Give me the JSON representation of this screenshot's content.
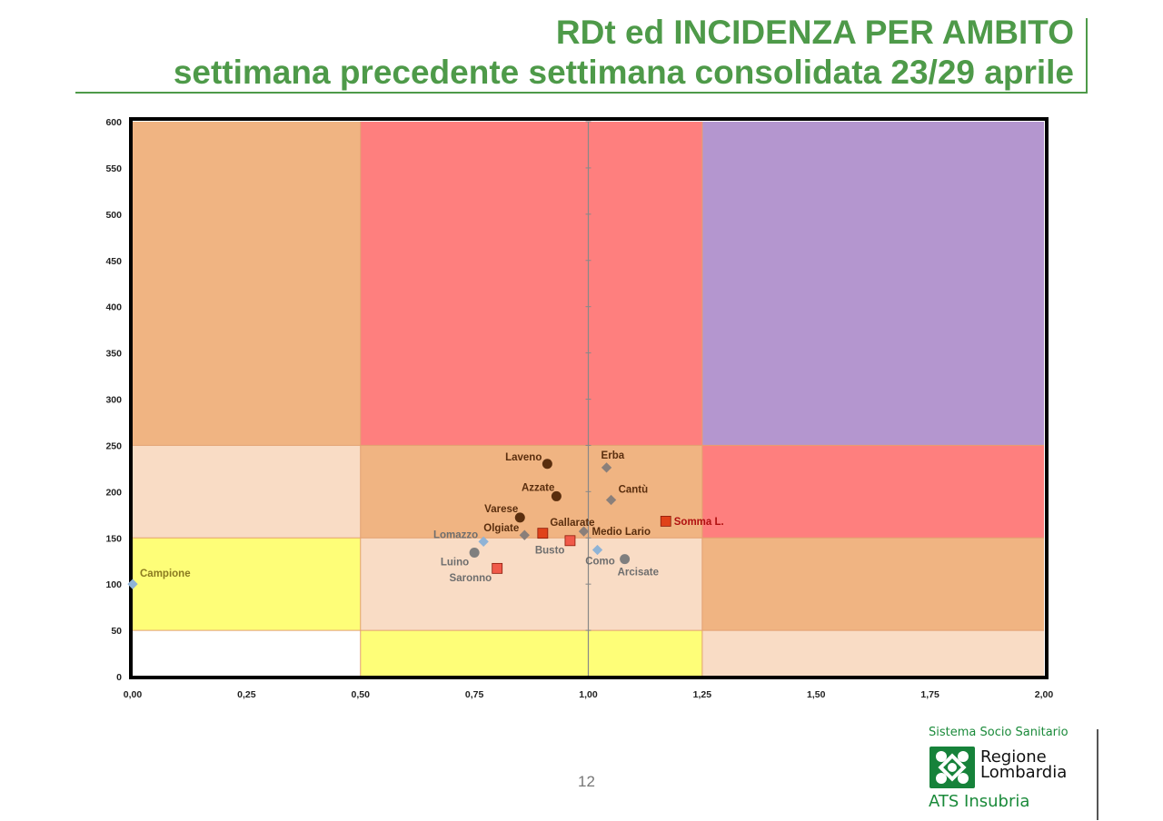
{
  "header": {
    "title_line1": "RDt ed INCIDENZA PER AMBITO",
    "title_line2": "settimana precedente settimana consolidata 23/29 aprile"
  },
  "chart_data": {
    "type": "scatter",
    "title": "",
    "xlabel": "",
    "ylabel": "",
    "xlim": [
      0,
      2
    ],
    "ylim": [
      0,
      600
    ],
    "x_ticks": [
      0,
      0.25,
      0.5,
      0.75,
      1,
      1.25,
      1.5,
      1.75,
      2
    ],
    "x_tick_labels": [
      "0,00",
      "0,25",
      "0,50",
      "0,75",
      "1,00",
      "1,25",
      "1,50",
      "1,75",
      "2,00"
    ],
    "y_ticks": [
      0,
      50,
      100,
      150,
      200,
      250,
      300,
      350,
      400,
      450,
      500,
      550,
      600
    ],
    "y_tick_labels": [
      "0",
      "50",
      "100",
      "150",
      "200",
      "250",
      "300",
      "350",
      "400",
      "450",
      "500",
      "550",
      "600"
    ],
    "grid": false,
    "colors": {
      "orange": "#f0b482",
      "red": "#fe7f7e",
      "purple": "#b496cf",
      "light": "#f9dcc5",
      "yellow": "#fefe78",
      "white": "#ffffff",
      "frame": "#000000"
    },
    "zones": [
      {
        "x": [
          0,
          0.5
        ],
        "y": [
          250,
          600
        ],
        "color": "orange"
      },
      {
        "x": [
          0.5,
          1.25
        ],
        "y": [
          250,
          600
        ],
        "color": "red"
      },
      {
        "x": [
          1.25,
          2
        ],
        "y": [
          250,
          600
        ],
        "color": "purple"
      },
      {
        "x": [
          0,
          0.5
        ],
        "y": [
          150,
          250
        ],
        "color": "light"
      },
      {
        "x": [
          0.5,
          1.25
        ],
        "y": [
          150,
          250
        ],
        "color": "orange"
      },
      {
        "x": [
          1.25,
          2
        ],
        "y": [
          150,
          250
        ],
        "color": "red"
      },
      {
        "x": [
          0,
          0.5
        ],
        "y": [
          50,
          150
        ],
        "color": "yellow"
      },
      {
        "x": [
          0.5,
          1.25
        ],
        "y": [
          50,
          150
        ],
        "color": "light"
      },
      {
        "x": [
          1.25,
          2
        ],
        "y": [
          50,
          150
        ],
        "color": "orange"
      },
      {
        "x": [
          0,
          0.5
        ],
        "y": [
          0,
          50
        ],
        "color": "white"
      },
      {
        "x": [
          0.5,
          1.25
        ],
        "y": [
          0,
          50
        ],
        "color": "yellow"
      },
      {
        "x": [
          1.25,
          2
        ],
        "y": [
          0,
          50
        ],
        "color": "light"
      }
    ],
    "points": [
      {
        "label": "Laveno",
        "x": 0.91,
        "y": 230,
        "marker": "circle",
        "color": "#5a2e0e",
        "text_color": "#5a2e0e",
        "label_pos": "left"
      },
      {
        "label": "Erba",
        "x": 1.04,
        "y": 226,
        "marker": "diamond",
        "color": "#8a7f7a",
        "text_color": "#5a2e0e",
        "label_pos": "above"
      },
      {
        "label": "Azzate",
        "x": 0.93,
        "y": 195,
        "marker": "circle",
        "color": "#5a2e0e",
        "text_color": "#5a2e0e",
        "label_pos": "above-left"
      },
      {
        "label": "Cantù",
        "x": 1.05,
        "y": 191,
        "marker": "diamond",
        "color": "#8a7f7a",
        "text_color": "#5a2e0e",
        "label_pos": "above-right"
      },
      {
        "label": "Varese",
        "x": 0.85,
        "y": 172,
        "marker": "circle",
        "color": "#5a2e0e",
        "text_color": "#5a2e0e",
        "label_pos": "above-left"
      },
      {
        "label": "Somma L.",
        "x": 1.17,
        "y": 168,
        "marker": "square",
        "color": "#e0421a",
        "text_color": "#b01010",
        "label_pos": "right"
      },
      {
        "label": "Gallarate",
        "x": 0.9,
        "y": 155,
        "marker": "square",
        "color": "#e0421a",
        "text_color": "#5a2e0e",
        "label_pos": "above-right"
      },
      {
        "label": "Medio Lario",
        "x": 0.99,
        "y": 157,
        "marker": "diamond",
        "color": "#8a7f7a",
        "text_color": "#5a2e0e",
        "label_pos": "right"
      },
      {
        "label": "Olgiate",
        "x": 0.86,
        "y": 153,
        "marker": "diamond",
        "color": "#8a7f7a",
        "text_color": "#5a2e0e",
        "label_pos": "left"
      },
      {
        "label": "Busto",
        "x": 0.96,
        "y": 147,
        "marker": "square",
        "color": "#f05a4a",
        "text_color": "#6e6e6e",
        "label_pos": "below-left"
      },
      {
        "label": "Lomazzo",
        "x": 0.77,
        "y": 146,
        "marker": "diamond",
        "color": "#8fb3d6",
        "text_color": "#6e6e6e",
        "label_pos": "left"
      },
      {
        "label": "Como",
        "x": 1.02,
        "y": 137,
        "marker": "diamond",
        "color": "#8fb3d6",
        "text_color": "#6e6e6e",
        "label_pos": "below"
      },
      {
        "label": "Luino",
        "x": 0.75,
        "y": 134,
        "marker": "circle",
        "color": "#7f7f7f",
        "text_color": "#6e6e6e",
        "label_pos": "below-left"
      },
      {
        "label": "Arcisate",
        "x": 1.08,
        "y": 127,
        "marker": "circle",
        "color": "#7f7f7f",
        "text_color": "#6e6e6e",
        "label_pos": "below-right"
      },
      {
        "label": "Saronno",
        "x": 0.8,
        "y": 117,
        "marker": "square",
        "color": "#f05a4a",
        "text_color": "#6e6e6e",
        "label_pos": "below-left"
      },
      {
        "label": "Campione",
        "x": 0,
        "y": 100,
        "marker": "diamond",
        "color": "#8fb3d6",
        "text_color": "#8a7a20",
        "label_pos": "above-right"
      }
    ]
  },
  "footer": {
    "page_number": "12",
    "logo_top": "Sistema Socio Sanitario",
    "logo_name_line1": "Regione",
    "logo_name_line2": "Lombardia",
    "logo_sub": "ATS Insubria"
  }
}
